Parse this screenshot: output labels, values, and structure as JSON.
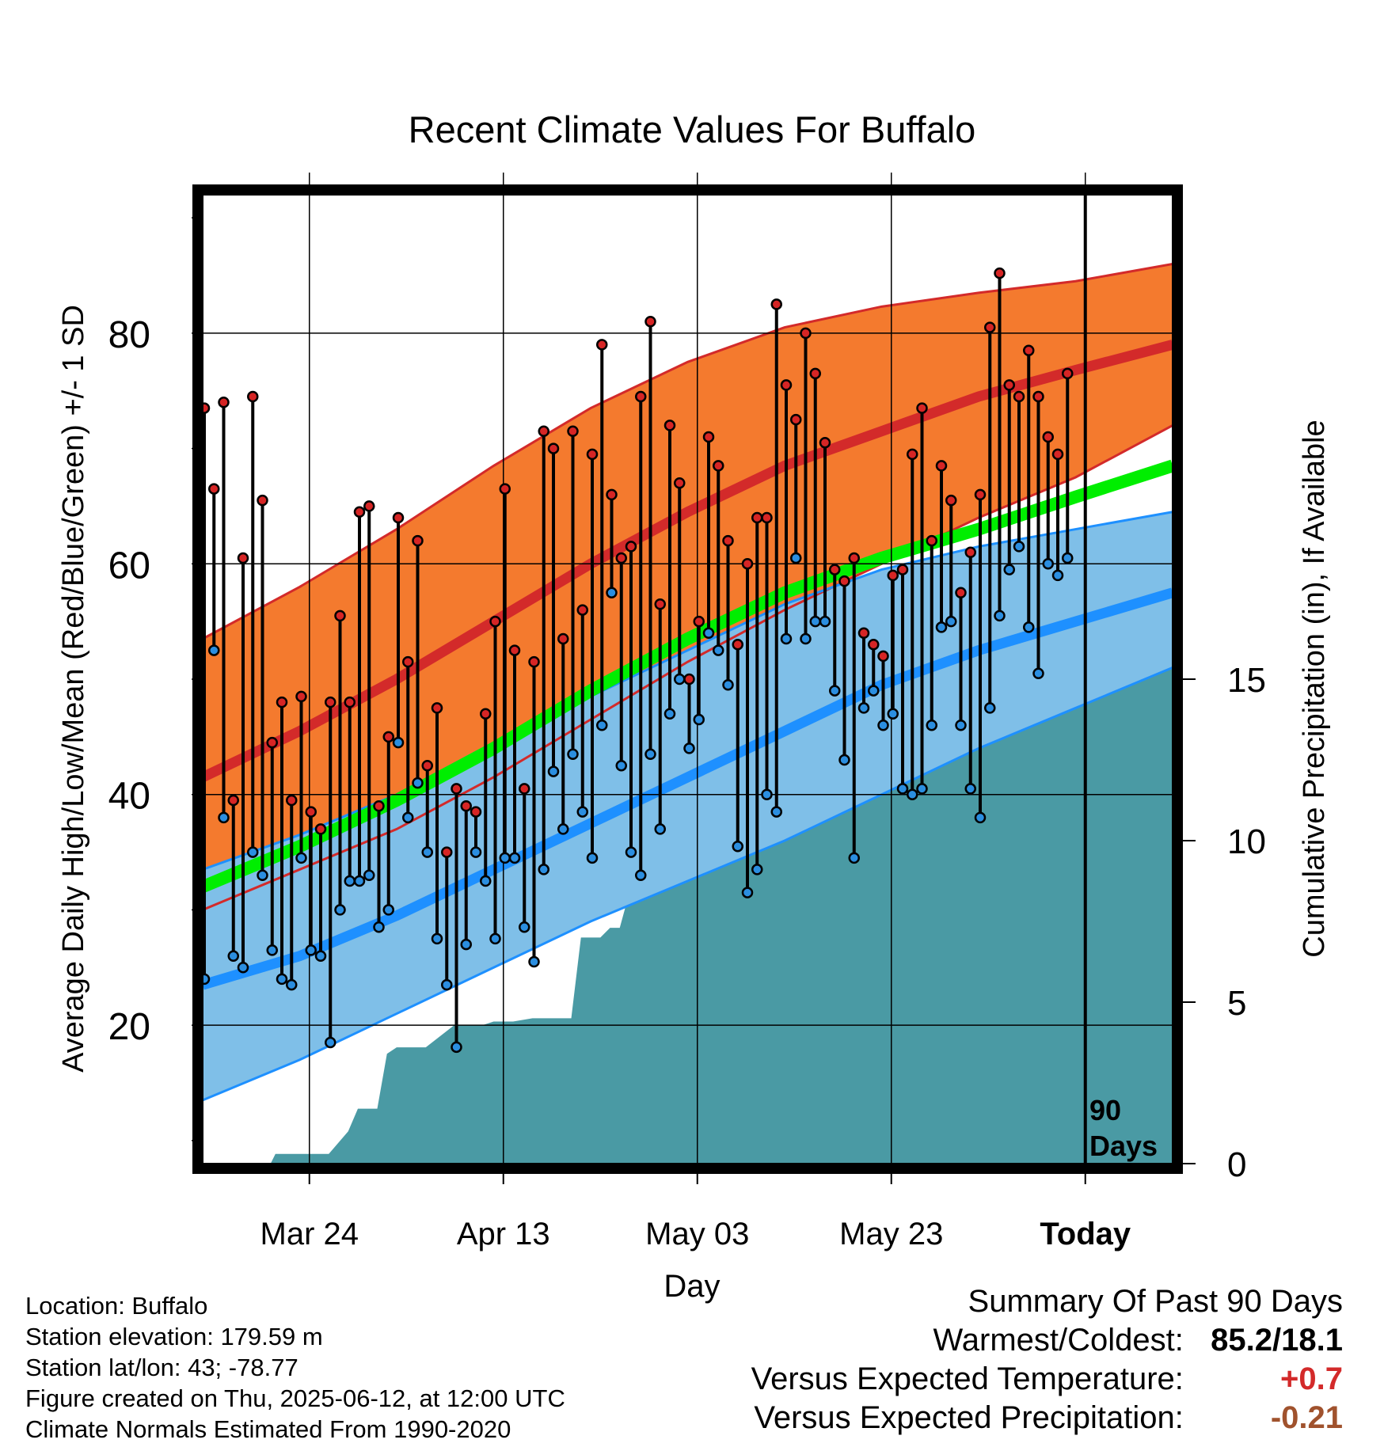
{
  "chart_data": {
    "type": "line",
    "title": "Recent Climate Values For Buffalo",
    "xlabel": "Day",
    "ylabel_left": "Average Daily High/Low/Mean (Red/Blue/Green) +/- 1 SD",
    "ylabel_right": "Cumulative Precipitation (in), If Available",
    "x_range_days": [
      0,
      100
    ],
    "ylim_left": [
      8,
      92
    ],
    "ylim_right": [
      0,
      30
    ],
    "x_ticks": [
      {
        "day": 11,
        "label": "Mar 24"
      },
      {
        "day": 31,
        "label": "Apr 13"
      },
      {
        "day": 51,
        "label": "May 03"
      },
      {
        "day": 71,
        "label": "May 23"
      },
      {
        "day": 91,
        "label": "Today"
      }
    ],
    "y_ticks_left": [
      20,
      40,
      60,
      80
    ],
    "y_ticks_right": [
      0,
      5,
      10,
      15
    ],
    "grid": true,
    "today_marker": {
      "day": 91,
      "label_line1": "90",
      "label_line2": "Days"
    },
    "normals": {
      "days": [
        0,
        10,
        20,
        30,
        40,
        50,
        60,
        70,
        80,
        90,
        100
      ],
      "high_mean": [
        41.5,
        45.5,
        50,
        55,
        60,
        64.5,
        68.5,
        71.5,
        74.5,
        76.8,
        79
      ],
      "high_upper": [
        53.5,
        58,
        63,
        68.5,
        73.5,
        77.5,
        80.5,
        82.3,
        83.5,
        84.5,
        86
      ],
      "high_lower": [
        30,
        33.5,
        37,
        41.5,
        46.5,
        51.5,
        56,
        60,
        64,
        67.5,
        72
      ],
      "mean_mean": [
        32,
        35.5,
        39.5,
        44,
        49,
        53.5,
        57.5,
        60.5,
        63,
        65.8,
        68.5
      ],
      "low_mean": [
        23.5,
        26,
        29.5,
        33.5,
        37.5,
        41.5,
        45.5,
        49.5,
        52.5,
        55,
        57.5
      ],
      "low_upper": [
        33.5,
        36.5,
        40,
        44.5,
        48.5,
        52.5,
        56.5,
        59.5,
        61.5,
        63,
        64.5
      ],
      "low_lower": [
        13.5,
        17,
        21,
        25,
        29,
        32.5,
        36,
        40,
        44,
        47.5,
        51
      ]
    },
    "daily": {
      "days": [
        0,
        1,
        2,
        3,
        4,
        5,
        6,
        7,
        8,
        9,
        10,
        11,
        12,
        13,
        14,
        15,
        16,
        17,
        18,
        19,
        20,
        21,
        22,
        23,
        24,
        25,
        26,
        27,
        28,
        29,
        30,
        31,
        32,
        33,
        34,
        35,
        36,
        37,
        38,
        39,
        40,
        41,
        42,
        43,
        44,
        45,
        46,
        47,
        48,
        49,
        50,
        51,
        52,
        53,
        54,
        55,
        56,
        57,
        58,
        59,
        60,
        61,
        62,
        63,
        64,
        65,
        66,
        67,
        68,
        69,
        70,
        71,
        72,
        73,
        74,
        75,
        76,
        77,
        78,
        79,
        80,
        81,
        82,
        83,
        84,
        85,
        86,
        87,
        88,
        89
      ],
      "high": [
        73.5,
        66.5,
        74,
        39.5,
        60.5,
        74.5,
        65.5,
        44.5,
        48,
        39.5,
        48.5,
        38.5,
        37,
        48,
        55.5,
        48,
        64.5,
        65,
        39,
        45,
        64,
        51.5,
        62,
        42.5,
        47.5,
        35,
        40.5,
        39,
        38.5,
        47,
        55,
        66.5,
        52.5,
        40.5,
        51.5,
        71.5,
        70,
        53.5,
        71.5,
        56,
        69.5,
        79,
        66,
        60.5,
        61.5,
        74.5,
        81,
        56.5,
        72,
        67,
        50,
        55,
        71,
        68.5,
        62,
        53,
        60,
        64,
        64,
        82.5,
        75.5,
        72.5,
        80,
        76.5,
        70.5,
        59.5,
        58.5,
        60.5,
        54,
        53,
        52,
        59,
        59.5,
        69.5,
        73.5,
        62,
        68.5,
        65.5,
        57.5,
        61,
        66,
        80.5,
        85.2,
        75.5,
        74.5,
        78.5,
        74.5,
        71,
        69.5,
        76.5
      ],
      "low": [
        24,
        52.5,
        38,
        26,
        25,
        35,
        33,
        26.5,
        24,
        23.5,
        34.5,
        26.5,
        26,
        18.5,
        30,
        32.5,
        32.5,
        33,
        28.5,
        30,
        44.5,
        38,
        41,
        35,
        27.5,
        23.5,
        18.1,
        27,
        35,
        32.5,
        27.5,
        34.5,
        34.5,
        28.5,
        25.5,
        33.5,
        42,
        37,
        43.5,
        38.5,
        34.5,
        46,
        57.5,
        42.5,
        35,
        33,
        43.5,
        37,
        47,
        50,
        44,
        46.5,
        54,
        52.5,
        49.5,
        35.5,
        31.5,
        33.5,
        40,
        38.5,
        53.5,
        60.5,
        53.5,
        55,
        55,
        49,
        43,
        34.5,
        47.5,
        49,
        46,
        47,
        40.5,
        40,
        40.5,
        46,
        54.5,
        55,
        46,
        40.5,
        38,
        47.5,
        55.5,
        59.5,
        61.5,
        54.5,
        50.5,
        60,
        59,
        60.5
      ]
    },
    "precip_cumulative": {
      "days": [
        0,
        7,
        7.5,
        13,
        15,
        16,
        18,
        19,
        20,
        21,
        23,
        26,
        27,
        29,
        30,
        32,
        34,
        36,
        38,
        39,
        40,
        41,
        42,
        43,
        44,
        46,
        47,
        48,
        50,
        51,
        52,
        54,
        56,
        58,
        60,
        62,
        63,
        65,
        66,
        67,
        69,
        70,
        71,
        72,
        74,
        76,
        77,
        78,
        80,
        82,
        84,
        86,
        87,
        88,
        89,
        90,
        100
      ],
      "values": [
        0,
        0,
        0.3,
        0.3,
        1,
        1.7,
        1.7,
        3.4,
        3.6,
        3.6,
        3.6,
        4.3,
        4.3,
        4.3,
        4.4,
        4.4,
        4.5,
        4.5,
        4.5,
        7,
        7,
        7,
        7.3,
        7.3,
        8.4,
        8.5,
        8.6,
        9.4,
        10,
        10.5,
        10.6,
        10.8,
        10.8,
        10.8,
        10.8,
        11,
        11,
        12,
        12,
        12,
        12,
        13.5,
        14.5,
        14.8,
        14.8,
        14.9,
        14.9,
        15,
        15,
        15,
        15,
        15,
        15.2,
        15.8,
        17,
        17.2,
        17.2
      ]
    },
    "colors": {
      "high_band": "#f47a2e",
      "high_line": "#d32a2a",
      "mean_line": "#00ee00",
      "low_band": "#7fbfe8",
      "low_line": "#1e90ff",
      "precip": "#4a9aa4",
      "high_marker": "#d62525",
      "low_marker": "#2b8ee0"
    }
  },
  "footer": {
    "location": "Location: Buffalo",
    "elevation": "Station elevation: 179.59 m",
    "latlon": "Station lat/lon: 43; -78.77",
    "created": "Figure created on Thu, 2025-06-12, at 12:00 UTC",
    "normals": "Climate Normals Estimated From 1990-2020"
  },
  "summary": {
    "title": "Summary Of Past 90 Days",
    "warmest_label": "Warmest/Coldest:",
    "warmest_value": "85.2/18.1",
    "temp_label": "Versus Expected Temperature:",
    "temp_value": "+0.7",
    "temp_color": "#d32a2a",
    "precip_label": "Versus Expected Precipitation:",
    "precip_value": "-0.21",
    "precip_color": "#a0522d"
  }
}
